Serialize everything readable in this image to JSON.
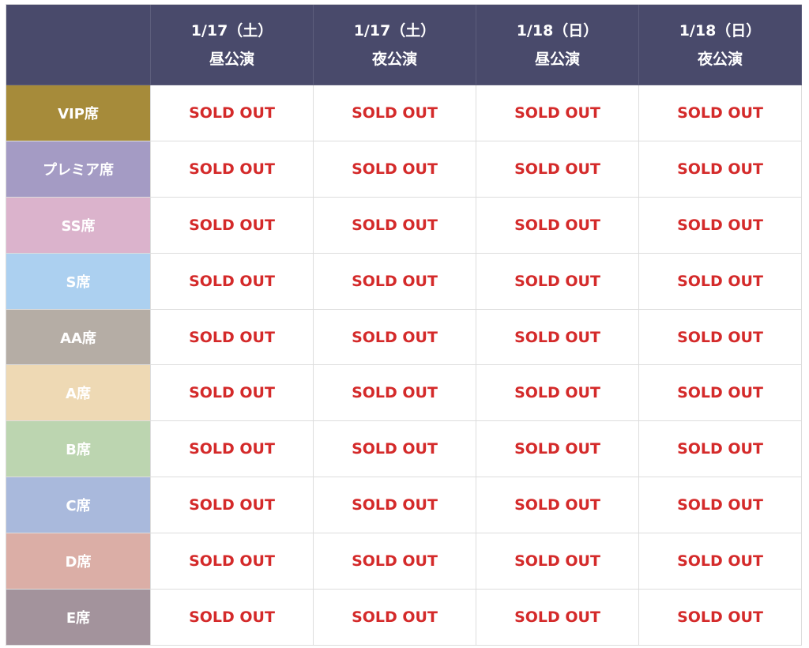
{
  "table": {
    "columns": [
      {
        "date": "1/17（土）",
        "show": "昼公演"
      },
      {
        "date": "1/17（土）",
        "show": "夜公演"
      },
      {
        "date": "1/18（日）",
        "show": "昼公演"
      },
      {
        "date": "1/18（日）",
        "show": "夜公演"
      }
    ],
    "rows": [
      {
        "label": "VIP席",
        "cells": [
          "SOLD OUT",
          "SOLD OUT",
          "SOLD OUT",
          "SOLD OUT"
        ]
      },
      {
        "label": "プレミア席",
        "cells": [
          "SOLD OUT",
          "SOLD OUT",
          "SOLD OUT",
          "SOLD OUT"
        ]
      },
      {
        "label": "SS席",
        "cells": [
          "SOLD OUT",
          "SOLD OUT",
          "SOLD OUT",
          "SOLD OUT"
        ]
      },
      {
        "label": "S席",
        "cells": [
          "SOLD OUT",
          "SOLD OUT",
          "SOLD OUT",
          "SOLD OUT"
        ]
      },
      {
        "label": "AA席",
        "cells": [
          "SOLD OUT",
          "SOLD OUT",
          "SOLD OUT",
          "SOLD OUT"
        ]
      },
      {
        "label": "A席",
        "cells": [
          "SOLD OUT",
          "SOLD OUT",
          "SOLD OUT",
          "SOLD OUT"
        ]
      },
      {
        "label": "B席",
        "cells": [
          "SOLD OUT",
          "SOLD OUT",
          "SOLD OUT",
          "SOLD OUT"
        ]
      },
      {
        "label": "C席",
        "cells": [
          "SOLD OUT",
          "SOLD OUT",
          "SOLD OUT",
          "SOLD OUT"
        ]
      },
      {
        "label": "D席",
        "cells": [
          "SOLD OUT",
          "SOLD OUT",
          "SOLD OUT",
          "SOLD OUT"
        ]
      },
      {
        "label": "E席",
        "cells": [
          "SOLD OUT",
          "SOLD OUT",
          "SOLD OUT",
          "SOLD OUT"
        ]
      }
    ]
  }
}
